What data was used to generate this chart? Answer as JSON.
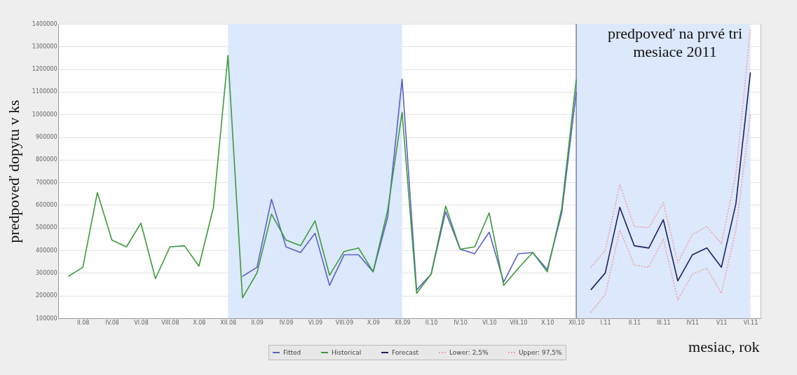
{
  "chart_data": {
    "type": "line",
    "xlabel": "mesiac, rok",
    "ylabel": "predpoveď dopytu v ks",
    "annotations": [
      "predpoveď na prvé tri mesiace 2011"
    ],
    "categories": [
      null,
      "II.08",
      null,
      "IV.08",
      null,
      "VI.08",
      null,
      "VIII.08",
      null,
      "X.08",
      null,
      "XII.08",
      null,
      "II.09",
      null,
      "IV.09",
      null,
      "VI.09",
      null,
      "VIII.09",
      null,
      "X.09",
      null,
      "XII.09",
      null,
      "II.10",
      null,
      "IV.10",
      null,
      "VI.10",
      null,
      "VIII.10",
      null,
      "X.10",
      null,
      "XII.10",
      null,
      "I.11",
      null,
      "II.11",
      null,
      "III.11",
      null,
      "IV11",
      null,
      "V11",
      null,
      "VI.11"
    ],
    "series": [
      {
        "name": "Fitted",
        "color": "#5b5fc7",
        "line_style": "solid",
        "values": [
          null,
          null,
          null,
          null,
          null,
          null,
          null,
          null,
          null,
          null,
          null,
          null,
          285000,
          325000,
          625000,
          415000,
          390000,
          475000,
          245000,
          380000,
          380000,
          305000,
          545000,
          1155000,
          225000,
          295000,
          570000,
          405000,
          385000,
          480000,
          260000,
          385000,
          390000,
          315000,
          565000,
          1100000,
          null,
          null,
          null,
          null,
          null,
          null,
          null,
          null,
          null,
          null,
          null,
          null
        ]
      },
      {
        "name": "Historical",
        "color": "#3c9a3c",
        "line_style": "solid",
        "values": [
          285000,
          325000,
          655000,
          445000,
          415000,
          520000,
          275000,
          415000,
          420000,
          330000,
          590000,
          1260000,
          190000,
          300000,
          560000,
          445000,
          420000,
          530000,
          290000,
          395000,
          410000,
          305000,
          575000,
          1010000,
          210000,
          295000,
          595000,
          405000,
          415000,
          565000,
          245000,
          320000,
          390000,
          305000,
          585000,
          1155000,
          null,
          null,
          null,
          null,
          null,
          null,
          null,
          null,
          null,
          null,
          null,
          null
        ]
      },
      {
        "name": "Forecast",
        "color": "#1f2160",
        "line_style": "solid",
        "values": [
          null,
          null,
          null,
          null,
          null,
          null,
          null,
          null,
          null,
          null,
          null,
          null,
          null,
          null,
          null,
          null,
          null,
          null,
          null,
          null,
          null,
          null,
          null,
          null,
          null,
          null,
          null,
          null,
          null,
          null,
          null,
          null,
          null,
          null,
          null,
          null,
          225000,
          300000,
          590000,
          420000,
          410000,
          535000,
          265000,
          380000,
          410000,
          325000,
          605000,
          1185000
        ]
      },
      {
        "name": "Lower: 2,5%",
        "color": "#f0a0a8",
        "line_style": "dotted",
        "values": [
          null,
          null,
          null,
          null,
          null,
          null,
          null,
          null,
          null,
          null,
          null,
          null,
          null,
          null,
          null,
          null,
          null,
          null,
          null,
          null,
          null,
          null,
          null,
          null,
          null,
          null,
          null,
          null,
          null,
          null,
          null,
          null,
          null,
          null,
          null,
          null,
          125000,
          205000,
          490000,
          335000,
          325000,
          450000,
          180000,
          295000,
          320000,
          210000,
          490000,
          1000000
        ]
      },
      {
        "name": "Upper: 97,5%",
        "color": "#f0a0a8",
        "line_style": "dotted",
        "values": [
          null,
          null,
          null,
          null,
          null,
          null,
          null,
          null,
          null,
          null,
          null,
          null,
          null,
          null,
          null,
          null,
          null,
          null,
          null,
          null,
          null,
          null,
          null,
          null,
          null,
          null,
          null,
          null,
          null,
          null,
          null,
          null,
          null,
          null,
          null,
          null,
          325000,
          400000,
          690000,
          505000,
          500000,
          610000,
          345000,
          470000,
          505000,
          430000,
          735000,
          1375000
        ]
      }
    ],
    "ylim": [
      100000,
      1400000
    ],
    "yticks": [
      100000,
      200000,
      300000,
      400000,
      500000,
      600000,
      700000,
      800000,
      900000,
      1000000,
      1100000,
      1200000,
      1300000,
      1400000
    ],
    "grid": "y",
    "legend": "bottom",
    "bands": [
      {
        "axis": "x",
        "from": "XII.08",
        "to": "XII.09",
        "color": "#dce8fb"
      },
      {
        "axis": "x",
        "from": "XII.10",
        "to": "VI.11",
        "color": "#dce8fb"
      }
    ],
    "ref_lines": [
      {
        "axis": "x",
        "value": "XII.10",
        "color": "#5a6a8a"
      }
    ]
  }
}
